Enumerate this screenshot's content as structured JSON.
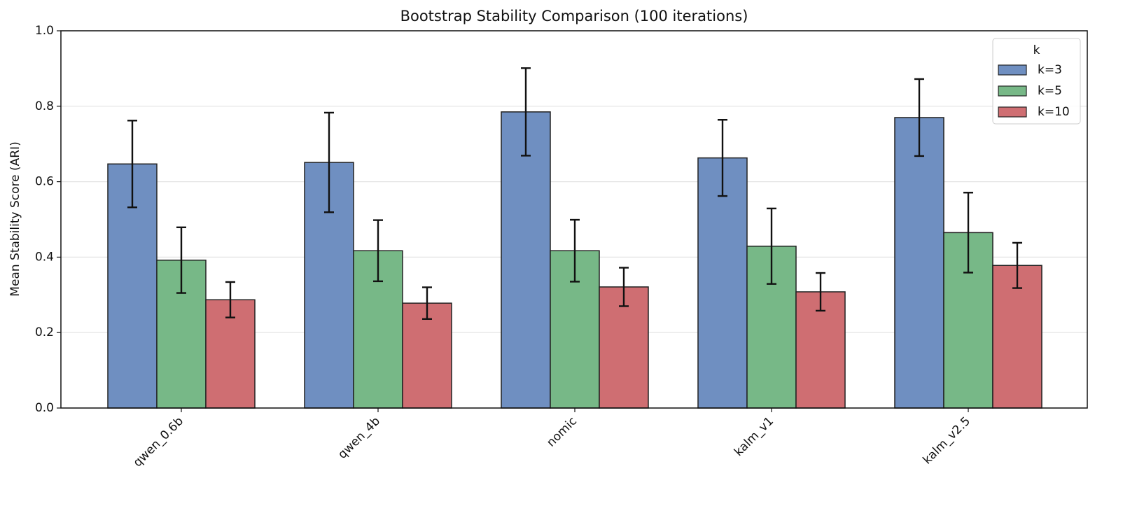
{
  "chart_data": {
    "type": "bar",
    "title": "Bootstrap Stability Comparison (100 iterations)",
    "y_label": "Mean Stability Score (ARI)",
    "categories": [
      "qwen_0.6b",
      "qwen_4b",
      "nomic",
      "kalm_v1",
      "kalm_v2.5"
    ],
    "series": [
      {
        "name": "k=3",
        "color": "#6f8fc1",
        "values": [
          0.647,
          0.651,
          0.785,
          0.663,
          0.77
        ],
        "errors": [
          0.115,
          0.132,
          0.116,
          0.101,
          0.102
        ]
      },
      {
        "name": "k=5",
        "color": "#77b887",
        "values": [
          0.392,
          0.417,
          0.417,
          0.429,
          0.465
        ],
        "errors": [
          0.087,
          0.081,
          0.082,
          0.1,
          0.106
        ]
      },
      {
        "name": "k=10",
        "color": "#cf6e72",
        "values": [
          0.287,
          0.278,
          0.321,
          0.308,
          0.378
        ],
        "errors": [
          0.047,
          0.042,
          0.051,
          0.05,
          0.06
        ]
      }
    ],
    "legend_title": "k",
    "legend_position": "upper right",
    "ylim": [
      0,
      1
    ],
    "yticks": [
      {
        "value": 0,
        "label": "0.0"
      },
      {
        "value": 0.2,
        "label": "0.2"
      },
      {
        "value": 0.4,
        "label": "0.4"
      },
      {
        "value": 0.6,
        "label": "0.6"
      },
      {
        "value": 0.8,
        "label": "0.8"
      },
      {
        "value": 1,
        "label": "1.0"
      }
    ],
    "grid": true
  }
}
